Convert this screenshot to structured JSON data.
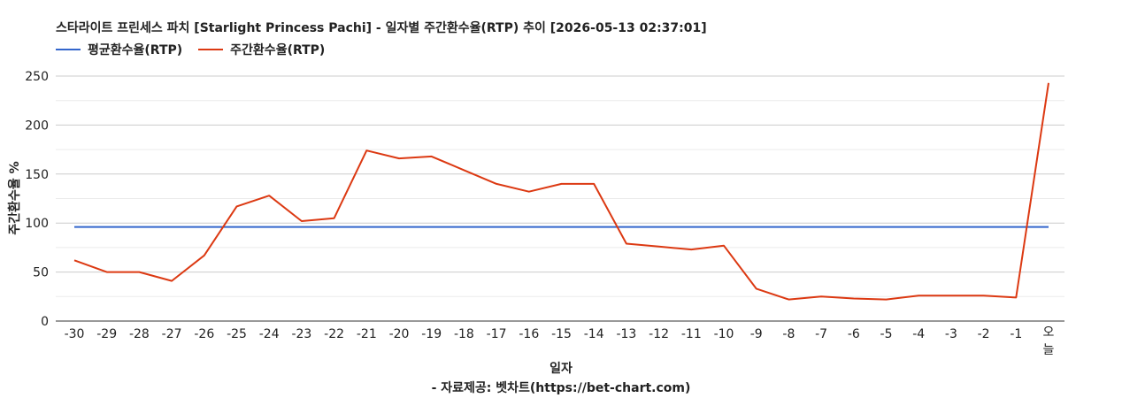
{
  "chart_data": {
    "type": "line",
    "title": "스타라이트 프린세스 파치 [Starlight Princess Pachi] - 일자별 주간환수율(RTP) 추이 [2026-05-13 02:37:01]",
    "xlabel": "일자",
    "ylabel": "주간환수율 %",
    "footer": "- 자료제공: 벳차트(https://bet-chart.com)",
    "categories": [
      "-30",
      "-29",
      "-28",
      "-27",
      "-26",
      "-25",
      "-24",
      "-23",
      "-22",
      "-21",
      "-20",
      "-19",
      "-18",
      "-17",
      "-16",
      "-15",
      "-14",
      "-13",
      "-12",
      "-11",
      "-10",
      "-9",
      "-8",
      "-7",
      "-6",
      "-5",
      "-4",
      "-3",
      "-2",
      "-1",
      "오늘"
    ],
    "ylim": [
      0,
      250
    ],
    "yticks": [
      "0",
      "50",
      "100",
      "150",
      "200",
      "250"
    ],
    "grid": true,
    "legend_position": "top-left",
    "series": [
      {
        "name": "평균환수율(RTP)",
        "color": "#3366cc",
        "values": [
          96,
          96,
          96,
          96,
          96,
          96,
          96,
          96,
          96,
          96,
          96,
          96,
          96,
          96,
          96,
          96,
          96,
          96,
          96,
          96,
          96,
          96,
          96,
          96,
          96,
          96,
          96,
          96,
          96,
          96,
          96
        ]
      },
      {
        "name": "주간환수율(RTP)",
        "color": "#dc3912",
        "values": [
          62,
          50,
          50,
          41,
          67,
          117,
          128,
          102,
          105,
          174,
          166,
          168,
          154,
          140,
          132,
          140,
          140,
          79,
          76,
          73,
          77,
          33,
          22,
          25,
          23,
          22,
          26,
          26,
          26,
          24,
          243
        ]
      }
    ]
  }
}
